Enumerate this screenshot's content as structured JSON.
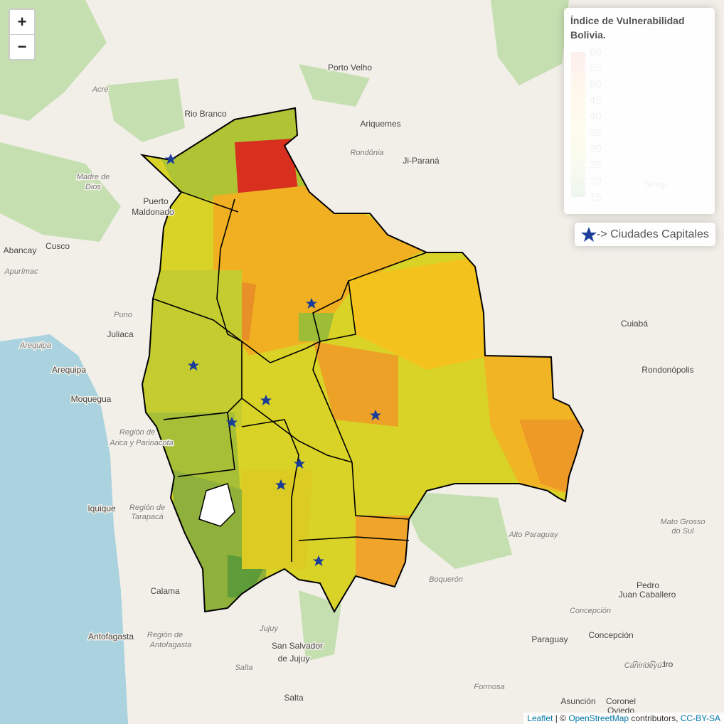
{
  "map": {
    "zoom_in": "+",
    "zoom_out": "−",
    "cities": [
      "Porto Velho",
      "Rio Branco",
      "Ariquemes",
      "Ji-Paraná",
      "Puerto",
      "Maldonado",
      "Abancay",
      "Cusco",
      "Juliaca",
      "Arequipa",
      "Moquegua",
      "Cuiabá",
      "Rondonópolis",
      "Iquique",
      "Calama",
      "Pedro",
      "Juan Caballero",
      "Concepción",
      "Paraguay",
      "San Pedro",
      "Antofagasta",
      "San Salvador",
      "de Jujuy",
      "Salta",
      "Asunción",
      "Coronel",
      "Oviedo",
      "Sinop"
    ],
    "regions": [
      "Acre",
      "Rondônia",
      "Madre de",
      "Dios",
      "Apurímac",
      "Puno",
      "Arequipa",
      "Región de",
      "Arica y Parinacota",
      "Región de",
      "Tarapacá",
      "Alto Paraguay",
      "Mato Grosso",
      "do Sul",
      "Boquerón",
      "Concepción",
      "Canindeyú",
      "Región de",
      "Antofagasta",
      "Jujuy",
      "Salta",
      "Formosa"
    ],
    "legend": {
      "title": [
        "Índice de Vulnerabilidad",
        "Bolivia."
      ],
      "ticks": [
        60,
        55,
        50,
        45,
        40,
        35,
        30,
        25,
        20,
        15
      ],
      "colors": [
        "#d7301f",
        "#ef7d22",
        "#f5b91c",
        "#f2d313",
        "#c9d32a",
        "#8fbb3a",
        "#1f8a3a"
      ]
    },
    "capitals_legend": "-> Ciudades Capitales",
    "attribution": [
      "Leaflet",
      " | © ",
      "OpenStreetMap",
      " contributors, ",
      "CC-BY-SA"
    ]
  }
}
